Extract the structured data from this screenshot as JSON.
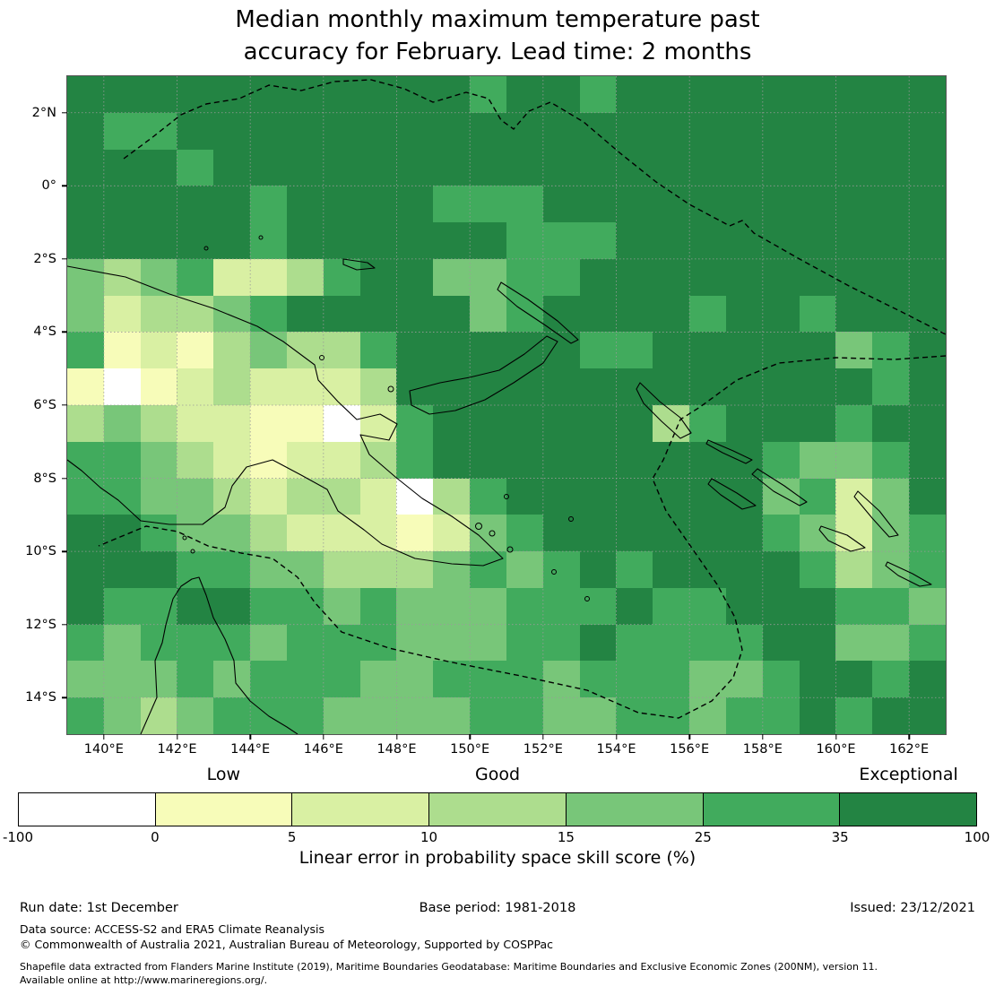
{
  "title": {
    "line1": "Median monthly maximum temperature past",
    "line2": "accuracy for February. Lead time: 2 months"
  },
  "chart_data": {
    "type": "heatmap",
    "description": "Gridded 1-degree map of LEPS skill score (%) over Papua New Guinea and Solomon Islands region",
    "lon_range": [
      139,
      163
    ],
    "lat_range": [
      -15,
      3
    ],
    "cols": 24,
    "rows": 18,
    "x_ticks": [
      "140°E",
      "142°E",
      "144°E",
      "146°E",
      "148°E",
      "150°E",
      "152°E",
      "154°E",
      "156°E",
      "158°E",
      "160°E",
      "162°E"
    ],
    "y_ticks": [
      "2°N",
      "0°",
      "2°S",
      "4°S",
      "6°S",
      "8°S",
      "10°S",
      "12°S",
      "14°S"
    ],
    "palette": [
      "#ffffff",
      "#f7fcb9",
      "#d9f0a3",
      "#addd8e",
      "#78c679",
      "#41ab5d",
      "#238443"
    ],
    "bin_edges": [
      -100,
      0,
      5,
      10,
      15,
      25,
      35,
      100
    ],
    "grid_rows": [
      "666666666665665666666666",
      "655666666666666666666666",
      "666566666666666666666666",
      "666665666655566666666666",
      "666665666666555666666666",
      "434522356644556666666666",
      "423345666664566665665666",
      "512134335666665566666456",
      "101232223666666666666656",
      "343221102566666635666566",
      "554321223566666666654456",
      "554432332035666666645246",
      "665443222124566666654245",
      "666554433345456566665345",
      "655665545444555655666554",
      "545554555444556555566445",
      "444545554455545554456656",
      "543455544445544554556566"
    ],
    "colorbar": {
      "ticks": [
        "-100",
        "0",
        "5",
        "10",
        "15",
        "25",
        "35",
        "100"
      ],
      "segment_colors": [
        "#ffffff",
        "#f7fcb9",
        "#d9f0a3",
        "#addd8e",
        "#78c679",
        "#41ab5d",
        "#238443"
      ],
      "headers": [
        {
          "label": "Low",
          "segment": 1
        },
        {
          "label": "Good",
          "segment": 3
        },
        {
          "label": "Exceptional",
          "segment": 6
        }
      ],
      "caption": "Linear error in probability space skill score (%)"
    }
  },
  "footer": {
    "run_date": "Run date: 1st December",
    "base_period": "Base period: 1981-2018",
    "issued": "Issued: 23/12/2021",
    "data_source": "Data source: ACCESS-S2 and ERA5 Climate Reanalysis",
    "copyright": "© Commonwealth of Australia 2021, Australian Bureau of Meteorology, Supported by COSPPac",
    "shapefile_line1": "Shapefile data extracted from Flanders Marine Institute (2019), Maritime Boundaries Geodatabase: Maritime Boundaries and Exclusive Economic Zones (200NM), version 11.",
    "shapefile_line2": "Available online at http://www.marineregions.org/."
  }
}
